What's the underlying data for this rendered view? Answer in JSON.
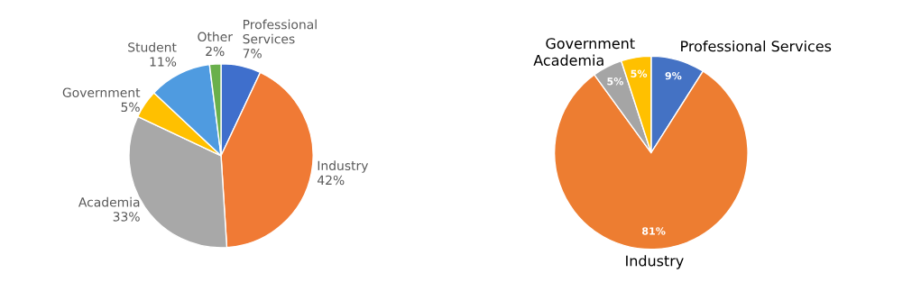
{
  "chart_data": [
    {
      "type": "pie",
      "categories": [
        "Professional\nServices",
        "Industry",
        "Academia",
        "Government",
        "Student",
        "Other"
      ],
      "values": [
        7,
        42,
        33,
        5,
        11,
        2
      ],
      "value_labels": [
        "7%",
        "42%",
        "33%",
        "5%",
        "11%",
        "2%"
      ],
      "colors": [
        "#3f6fcc",
        "#f07a35",
        "#a8a8a8",
        "#ffc000",
        "#4f9be0",
        "#6ab04c"
      ]
    },
    {
      "type": "pie",
      "categories": [
        "Professional Services",
        "Industry",
        "Academia",
        "Government"
      ],
      "values": [
        9,
        81,
        5,
        5
      ],
      "value_labels": [
        "9%",
        "81%",
        "5%",
        "5%"
      ],
      "colors": [
        "#4472c4",
        "#ed7d31",
        "#a5a5a5",
        "#ffc000"
      ]
    }
  ]
}
